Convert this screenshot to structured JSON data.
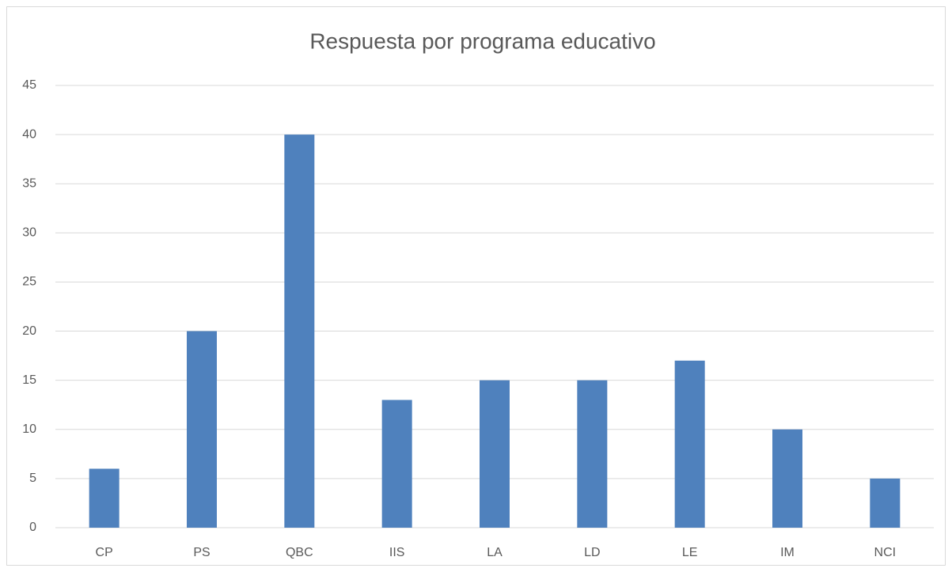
{
  "chart_data": {
    "type": "bar",
    "title": "Respuesta por programa educativo",
    "categories": [
      "CP",
      "PS",
      "QBC",
      "IIS",
      "LA",
      "LD",
      "LE",
      "IM",
      "NCI"
    ],
    "values": [
      6,
      20,
      40,
      13,
      15,
      15,
      17,
      10,
      5
    ],
    "color": "#4f81bd",
    "ylim": [
      0,
      45
    ],
    "yticks": [
      0,
      5,
      10,
      15,
      20,
      25,
      30,
      35,
      40,
      45
    ],
    "grid": true
  }
}
